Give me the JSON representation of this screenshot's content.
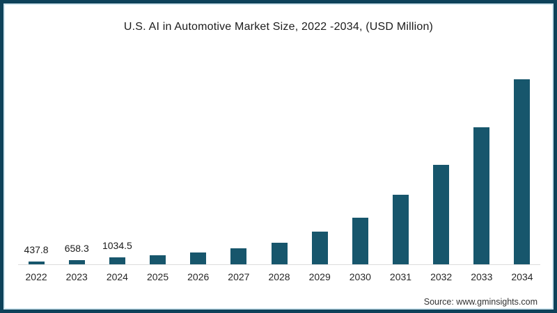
{
  "title": "U.S. AI in Automotive Market Size, 2022 -2034, (USD Million)",
  "source_text": "Source: www.gminsights.com",
  "colors": {
    "bar": "#17566c",
    "frame_border": "#0e425a",
    "frame_inner_line": "#d3e7f0",
    "baseline": "#dcdcdc",
    "text": "#1c1c1c"
  },
  "chart_data": {
    "type": "bar",
    "title": "U.S. AI in Automotive Market Size, 2022 -2034, (USD Million)",
    "categories": [
      "2022",
      "2023",
      "2024",
      "2025",
      "2026",
      "2027",
      "2028",
      "2029",
      "2030",
      "2031",
      "2032",
      "2033",
      "2034"
    ],
    "values": [
      437.8,
      658.3,
      1034.5,
      1390,
      1730,
      2380,
      3210,
      4860,
      6930,
      10350,
      14800,
      20400,
      27500
    ],
    "data_labels_shown": [
      "437.8",
      "658.3",
      "1034.5",
      "",
      "",
      "",
      "",
      "",
      "",
      "",
      "",
      "",
      ""
    ],
    "xlabel": "",
    "ylabel": "USD Million",
    "ylim": [
      0,
      28000
    ],
    "grid": false,
    "legend": false,
    "y_axis_shown": false,
    "bar_color": "#17566c"
  }
}
